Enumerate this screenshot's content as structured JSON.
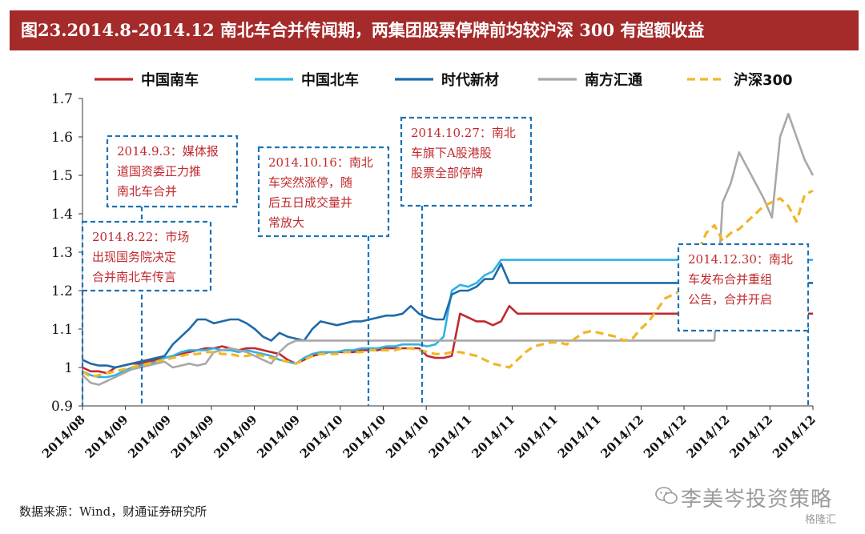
{
  "title": "图23.2014.8-2014.12 南北车合并传闻期，两集团股票停牌前均较沪深 300 有超额收益",
  "source": "数据来源：Wind，财通证券研究所",
  "watermark": "李美岑投资策略",
  "watermark_sub": "格隆汇",
  "chart_data": {
    "type": "line",
    "ylim": [
      0.9,
      1.7
    ],
    "yticks": [
      "0.9",
      "1",
      "1.1",
      "1.2",
      "1.3",
      "1.4",
      "1.5",
      "1.6",
      "1.7"
    ],
    "x_tick_labels": [
      "2014/08",
      "2014/09",
      "2014/09",
      "2014/09",
      "2014/09",
      "2014/09",
      "2014/10",
      "2014/10",
      "2014/10",
      "2014/11",
      "2014/11",
      "2014/11",
      "2014/11",
      "2014/12",
      "2014/12",
      "2014/12",
      "2014/12",
      "2014/12"
    ],
    "x_count": 90,
    "legend_position": "top",
    "series": [
      {
        "name": "中国南车",
        "color": "#c0292e",
        "dash": false,
        "values": [
          1.0,
          0.99,
          0.99,
          0.985,
          1.0,
          1.005,
          1.01,
          1.01,
          1.015,
          1.02,
          1.025,
          1.03,
          1.035,
          1.04,
          1.045,
          1.05,
          1.05,
          1.055,
          1.05,
          1.045,
          1.05,
          1.05,
          1.045,
          1.04,
          1.035,
          1.02,
          1.01,
          1.02,
          1.03,
          1.035,
          1.04,
          1.04,
          1.04,
          1.04,
          1.045,
          1.045,
          1.045,
          1.05,
          1.05,
          1.05,
          1.05,
          1.05,
          1.03,
          1.025,
          1.025,
          1.03,
          1.14,
          1.13,
          1.12,
          1.12,
          1.11,
          1.12,
          1.16,
          1.14,
          1.14,
          1.14,
          1.14,
          1.14,
          1.14,
          1.14,
          1.14,
          1.14,
          1.14,
          1.14,
          1.14,
          1.14,
          1.14,
          1.14,
          1.14,
          1.14,
          1.14,
          1.14,
          1.14,
          1.14,
          1.14,
          1.14,
          1.14,
          1.14,
          1.14,
          1.14,
          1.14,
          1.14,
          1.14,
          1.14,
          1.14,
          1.14,
          1.14,
          1.14,
          1.14,
          1.14
        ]
      },
      {
        "name": "中国北车",
        "color": "#2fb2e6",
        "dash": false,
        "values": [
          0.99,
          0.98,
          0.975,
          0.975,
          0.98,
          0.99,
          1.0,
          1.005,
          1.01,
          1.015,
          1.025,
          1.03,
          1.04,
          1.045,
          1.045,
          1.045,
          1.05,
          1.045,
          1.045,
          1.04,
          1.045,
          1.04,
          1.035,
          1.03,
          1.02,
          1.015,
          1.01,
          1.025,
          1.035,
          1.04,
          1.04,
          1.04,
          1.045,
          1.045,
          1.05,
          1.05,
          1.05,
          1.055,
          1.055,
          1.06,
          1.06,
          1.06,
          1.055,
          1.06,
          1.08,
          1.2,
          1.215,
          1.21,
          1.22,
          1.24,
          1.25,
          1.28,
          1.28,
          1.28,
          1.28,
          1.28,
          1.28,
          1.28,
          1.28,
          1.28,
          1.28,
          1.28,
          1.28,
          1.28,
          1.28,
          1.28,
          1.28,
          1.28,
          1.28,
          1.28,
          1.28,
          1.28,
          1.28,
          1.28,
          1.28,
          1.28,
          1.28,
          1.28,
          1.28,
          1.28,
          1.28,
          1.28,
          1.28,
          1.28,
          1.28,
          1.28,
          1.28,
          1.28,
          1.28,
          1.28
        ]
      },
      {
        "name": "时代新材",
        "color": "#1f6aa8",
        "dash": false,
        "values": [
          1.02,
          1.01,
          1.005,
          1.005,
          1.0,
          1.005,
          1.01,
          1.015,
          1.02,
          1.025,
          1.03,
          1.06,
          1.08,
          1.1,
          1.125,
          1.125,
          1.115,
          1.12,
          1.125,
          1.125,
          1.115,
          1.1,
          1.08,
          1.07,
          1.09,
          1.08,
          1.075,
          1.07,
          1.1,
          1.12,
          1.115,
          1.11,
          1.115,
          1.12,
          1.12,
          1.125,
          1.13,
          1.135,
          1.135,
          1.14,
          1.16,
          1.14,
          1.13,
          1.125,
          1.125,
          1.19,
          1.2,
          1.2,
          1.21,
          1.23,
          1.23,
          1.27,
          1.22,
          1.22,
          1.22,
          1.22,
          1.22,
          1.22,
          1.22,
          1.22,
          1.22,
          1.22,
          1.22,
          1.22,
          1.22,
          1.22,
          1.22,
          1.22,
          1.22,
          1.22,
          1.22,
          1.22,
          1.22,
          1.22,
          1.22,
          1.22,
          1.22,
          1.22,
          1.22,
          1.22,
          1.22,
          1.22,
          1.22,
          1.22,
          1.22,
          1.22,
          1.22,
          1.22,
          1.22,
          1.22
        ]
      },
      {
        "name": "南方汇通",
        "color": "#a8a8a8",
        "dash": false,
        "values": [
          0.98,
          0.96,
          0.955,
          0.965,
          0.975,
          0.985,
          0.995,
          1.0,
          1.005,
          1.01,
          1.015,
          1.0,
          1.005,
          1.01,
          1.005,
          1.01,
          1.04,
          1.045,
          1.05,
          1.045,
          1.04,
          1.03,
          1.02,
          1.01,
          1.04,
          1.06,
          1.07,
          1.07,
          1.07,
          1.07,
          1.07,
          1.07,
          1.07,
          1.07,
          1.07,
          1.07,
          1.07,
          1.07,
          1.07,
          1.07,
          1.07,
          1.07,
          1.07,
          1.07,
          1.07,
          1.07,
          1.07,
          1.07,
          1.07,
          1.07,
          1.07,
          1.07,
          1.07,
          1.07,
          1.07,
          1.07,
          1.07,
          1.07,
          1.07,
          1.07,
          1.07,
          1.07,
          1.07,
          1.07,
          1.07,
          1.07,
          1.07,
          1.07,
          1.07,
          1.07,
          1.07,
          1.07,
          1.07,
          1.07,
          1.07,
          1.07,
          1.07,
          1.07,
          1.43,
          1.48,
          1.56,
          1.52,
          1.48,
          1.44,
          1.39,
          1.6,
          1.66,
          1.6,
          1.54,
          1.5
        ]
      },
      {
        "name": "沪深300",
        "color": "#f0b62a",
        "dash": true,
        "values": [
          0.99,
          0.975,
          0.98,
          0.985,
          0.99,
          0.995,
          1.0,
          1.005,
          1.01,
          1.015,
          1.02,
          1.025,
          1.03,
          1.035,
          1.035,
          1.04,
          1.04,
          1.035,
          1.035,
          1.03,
          1.03,
          1.035,
          1.03,
          1.025,
          1.02,
          1.015,
          1.01,
          1.02,
          1.03,
          1.035,
          1.035,
          1.035,
          1.04,
          1.04,
          1.04,
          1.045,
          1.045,
          1.045,
          1.045,
          1.05,
          1.05,
          1.045,
          1.04,
          1.035,
          1.035,
          1.04,
          1.04,
          1.035,
          1.03,
          1.02,
          1.01,
          1.005,
          1.0,
          1.02,
          1.04,
          1.055,
          1.06,
          1.065,
          1.065,
          1.06,
          1.075,
          1.09,
          1.095,
          1.09,
          1.085,
          1.08,
          1.07,
          1.075,
          1.1,
          1.12,
          1.15,
          1.18,
          1.19,
          1.2,
          1.24,
          1.3,
          1.35,
          1.37,
          1.33,
          1.35,
          1.36,
          1.38,
          1.4,
          1.42,
          1.43,
          1.44,
          1.42,
          1.38,
          1.45,
          1.46
        ]
      }
    ],
    "annotations": [
      {
        "lines": [
          "2014.8.22：市场",
          "出现国务院决定",
          "合并南北车传言"
        ]
      },
      {
        "lines": [
          "2014.9.3：媒体报",
          "道国资委正力推",
          "南北车合并"
        ]
      },
      {
        "lines": [
          "2014.10.16：南北",
          "车突然涨停，随",
          "后五日成交量井",
          "常放大"
        ]
      },
      {
        "lines": [
          "2014.10.27：南北",
          "车旗下A股港股",
          "股票全部停牌"
        ]
      },
      {
        "lines": [
          "2014.12.30：南北",
          "车发布合并重组",
          "公告，合并开启"
        ]
      }
    ]
  }
}
